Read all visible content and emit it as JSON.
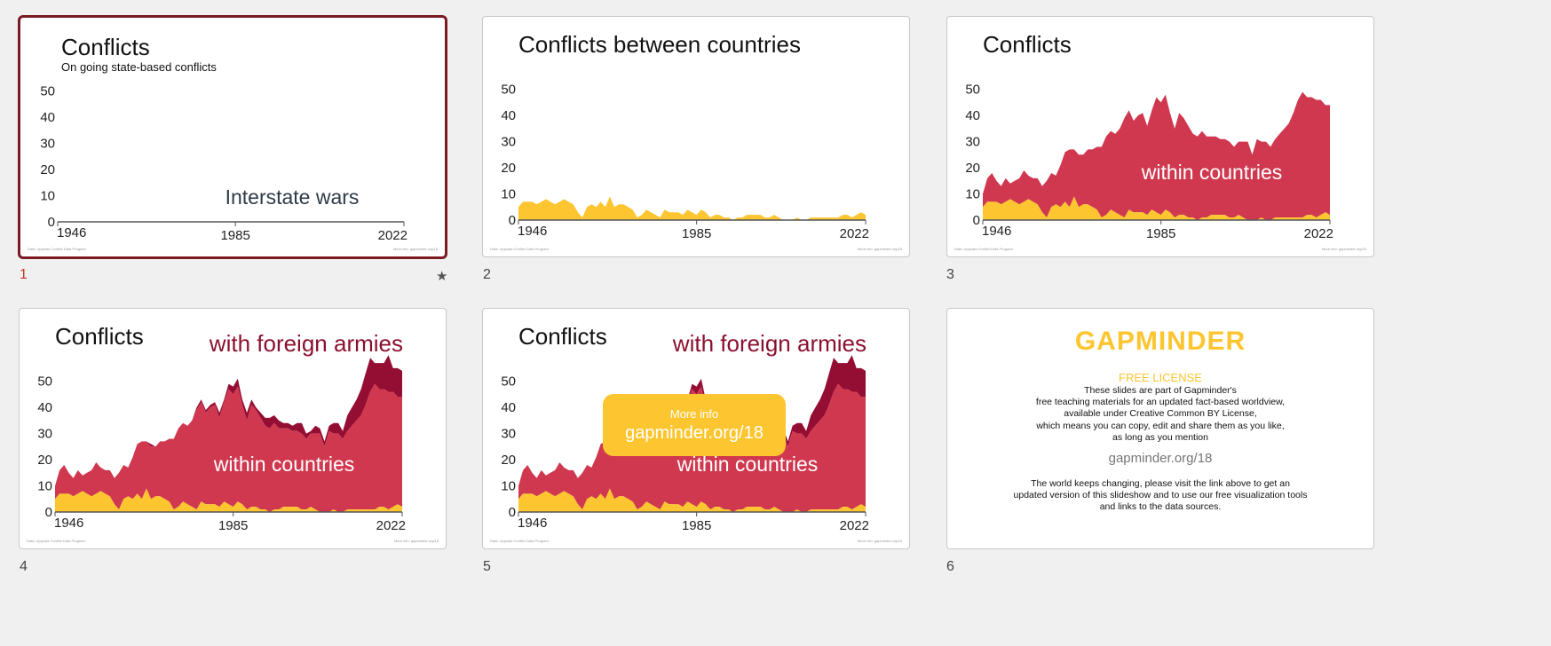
{
  "slides": [
    {
      "number": "1",
      "title": "Conflicts",
      "subtitle": "On going state-based conflicts",
      "label": "Interstate wars",
      "source": "Data: Uppsala Conflict Data Program",
      "more": "More info: gapminder.org/18",
      "star": "★"
    },
    {
      "number": "2",
      "title": "Conflicts between countries",
      "source": "Data: Uppsala Conflict Data Program",
      "more": "More info: gapminder.org/18"
    },
    {
      "number": "3",
      "title": "Conflicts",
      "within_label": "within countries",
      "source": "Data: Uppsala Conflict Data Program",
      "more": "More info: gapminder.org/18"
    },
    {
      "number": "4",
      "title": "Conflicts",
      "foreign_label": "with foreign armies",
      "within_label": "within countries",
      "source": "Data: Uppsala Conflict Data Program",
      "more": "More info: gapminder.org/18"
    },
    {
      "number": "5",
      "title": "Conflicts",
      "foreign_label": "with foreign armies",
      "within_label": "within countries",
      "more_info_title": "More info",
      "more_info_url": "gapminder.org/18",
      "source": "Data: Uppsala Conflict Data Program",
      "more": "More info: gapminder.org/18"
    },
    {
      "number": "6",
      "logo": "GAPMINDER",
      "license": "FREE LICENSE",
      "text1": [
        "These slides are part of Gapminder's",
        "free teaching materials for an updated fact-based worldview,",
        "available under Creative Common BY License,",
        "which means you can copy, edit and share them as you like,",
        "as long as you mention"
      ],
      "url": "gapminder.org/18",
      "text2": [
        "The world keeps changing, please visit the link above to get an",
        "updated version of this slideshow and to use our free visualization tools",
        "and links to the data sources."
      ]
    }
  ],
  "colors": {
    "interstate": "#fdc52f",
    "within": "#d0384f",
    "foreign": "#940d33",
    "selected_border": "#7a1a22"
  },
  "chart_data": {
    "type": "area",
    "x_start": 1946,
    "x_end": 2022,
    "x_ticks": [
      "1946",
      "1985",
      "2022"
    ],
    "y_ticks": [
      0,
      10,
      20,
      30,
      40,
      50
    ],
    "ylim": [
      0,
      56
    ],
    "series": [
      {
        "key": "interstate",
        "values": [
          5,
          7,
          7,
          7,
          6,
          7,
          8,
          7,
          6,
          7,
          8,
          7,
          6,
          3,
          1,
          5,
          6,
          5,
          7,
          5,
          9,
          5,
          6,
          6,
          5,
          4,
          1,
          2,
          4,
          3,
          2,
          1,
          4,
          3,
          3,
          3,
          2,
          4,
          3,
          2,
          4,
          3,
          1,
          2,
          2,
          1,
          1,
          0,
          1,
          1,
          2,
          2,
          2,
          2,
          1,
          1,
          2,
          1,
          0,
          0,
          0,
          1,
          0,
          0,
          1,
          1,
          1,
          1,
          1,
          1,
          1,
          2,
          2,
          1,
          2,
          3,
          2
        ]
      },
      {
        "key": "within",
        "values": [
          5,
          9,
          11,
          8,
          7,
          9,
          6,
          8,
          10,
          12,
          9,
          9,
          10,
          10,
          14,
          13,
          11,
          16,
          19,
          22,
          18,
          20,
          19,
          21,
          22,
          24,
          27,
          30,
          30,
          30,
          33,
          38,
          38,
          35,
          37,
          38,
          34,
          38,
          44,
          43,
          44,
          38,
          34,
          39,
          37,
          35,
          32,
          32,
          33,
          31,
          30,
          30,
          29,
          29,
          29,
          27,
          28,
          29,
          30,
          25,
          31,
          29,
          30,
          28,
          30,
          32,
          34,
          36,
          40,
          45,
          48,
          45,
          45,
          45,
          44,
          41,
          42
        ]
      },
      {
        "key": "foreign",
        "values": [
          0,
          0,
          0,
          0,
          0,
          0,
          0,
          0,
          0,
          0,
          0,
          0,
          0,
          0,
          0,
          0,
          0,
          0,
          0,
          0,
          0,
          1,
          0,
          0,
          0,
          0,
          0,
          0,
          0,
          0,
          0,
          1,
          1,
          1,
          1,
          1,
          2,
          1,
          2,
          3,
          3,
          2,
          3,
          2,
          1,
          2,
          3,
          4,
          3,
          3,
          2,
          2,
          2,
          3,
          4,
          2,
          1,
          3,
          2,
          2,
          2,
          4,
          4,
          3,
          6,
          7,
          8,
          10,
          12,
          13,
          8,
          10,
          10,
          14,
          9,
          11,
          10
        ]
      }
    ]
  }
}
